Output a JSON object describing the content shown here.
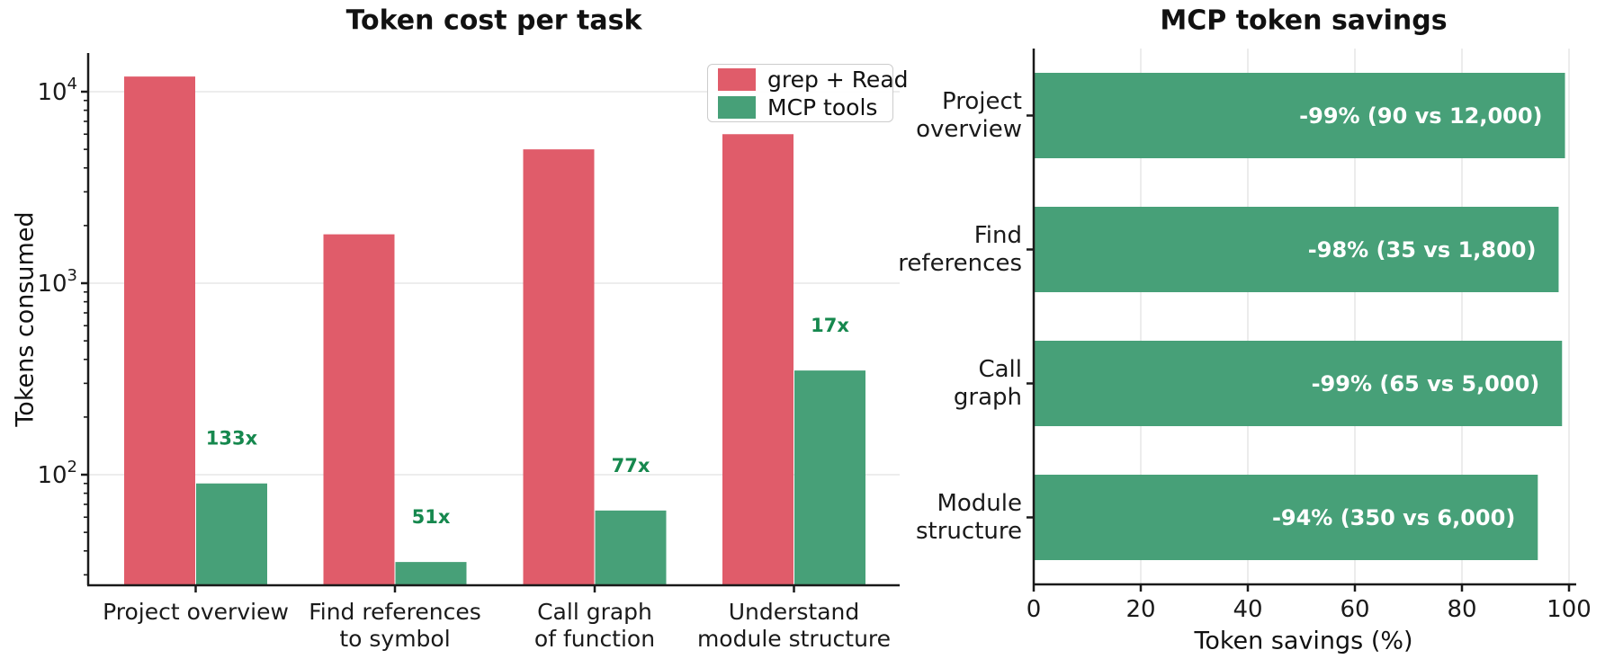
{
  "figure": {
    "background": "#ffffff"
  },
  "chart_data": [
    {
      "type": "bar",
      "title": "Token cost per task",
      "ylabel": "Tokens consumed",
      "xlabel": "",
      "y_scale": "log",
      "ylim": [
        26,
        16000
      ],
      "ytick_values": [
        100,
        1000,
        10000
      ],
      "grid": "horizontal",
      "categories": [
        "Project overview",
        "Find references\nto symbol",
        "Call graph\nof function",
        "Understand\nmodule structure"
      ],
      "series": [
        {
          "name": "grep + Read",
          "color": "#e05c6a",
          "values": [
            12000,
            1800,
            5000,
            6000
          ]
        },
        {
          "name": "MCP tools",
          "color": "#47a078",
          "values": [
            90,
            35,
            65,
            350
          ]
        }
      ],
      "annotations": {
        "labels": [
          "133x",
          "51x",
          "77x",
          "17x"
        ],
        "color": "#16884e"
      },
      "legend": {
        "position": "upper-right",
        "items": [
          "grep + Read",
          "MCP tools"
        ]
      }
    },
    {
      "type": "bar",
      "orientation": "horizontal",
      "title": "MCP token savings",
      "xlabel": "Token savings (%)",
      "ylabel": "",
      "xlim": [
        0,
        100
      ],
      "xtick_values": [
        0,
        20,
        40,
        60,
        80,
        100
      ],
      "grid": "vertical",
      "categories": [
        "Project\noverview",
        "Find\nreferences",
        "Call\ngraph",
        "Module\nstructure"
      ],
      "values": [
        99.25,
        98.06,
        98.7,
        94.17
      ],
      "bar_labels": [
        "-99%  (90 vs 12,000)",
        "-98%  (35 vs 1,800)",
        "-99%  (65 vs 5,000)",
        "-94%  (350 vs 6,000)"
      ],
      "bar_color": "#47a078",
      "bar_label_color": "#ffffff"
    }
  ],
  "colors": {
    "grep_read": "#e05c6a",
    "mcp_tools": "#47a078",
    "annotation_green": "#16884e",
    "axis": "#1a1a1a",
    "gridline": "#e7e7e7"
  }
}
